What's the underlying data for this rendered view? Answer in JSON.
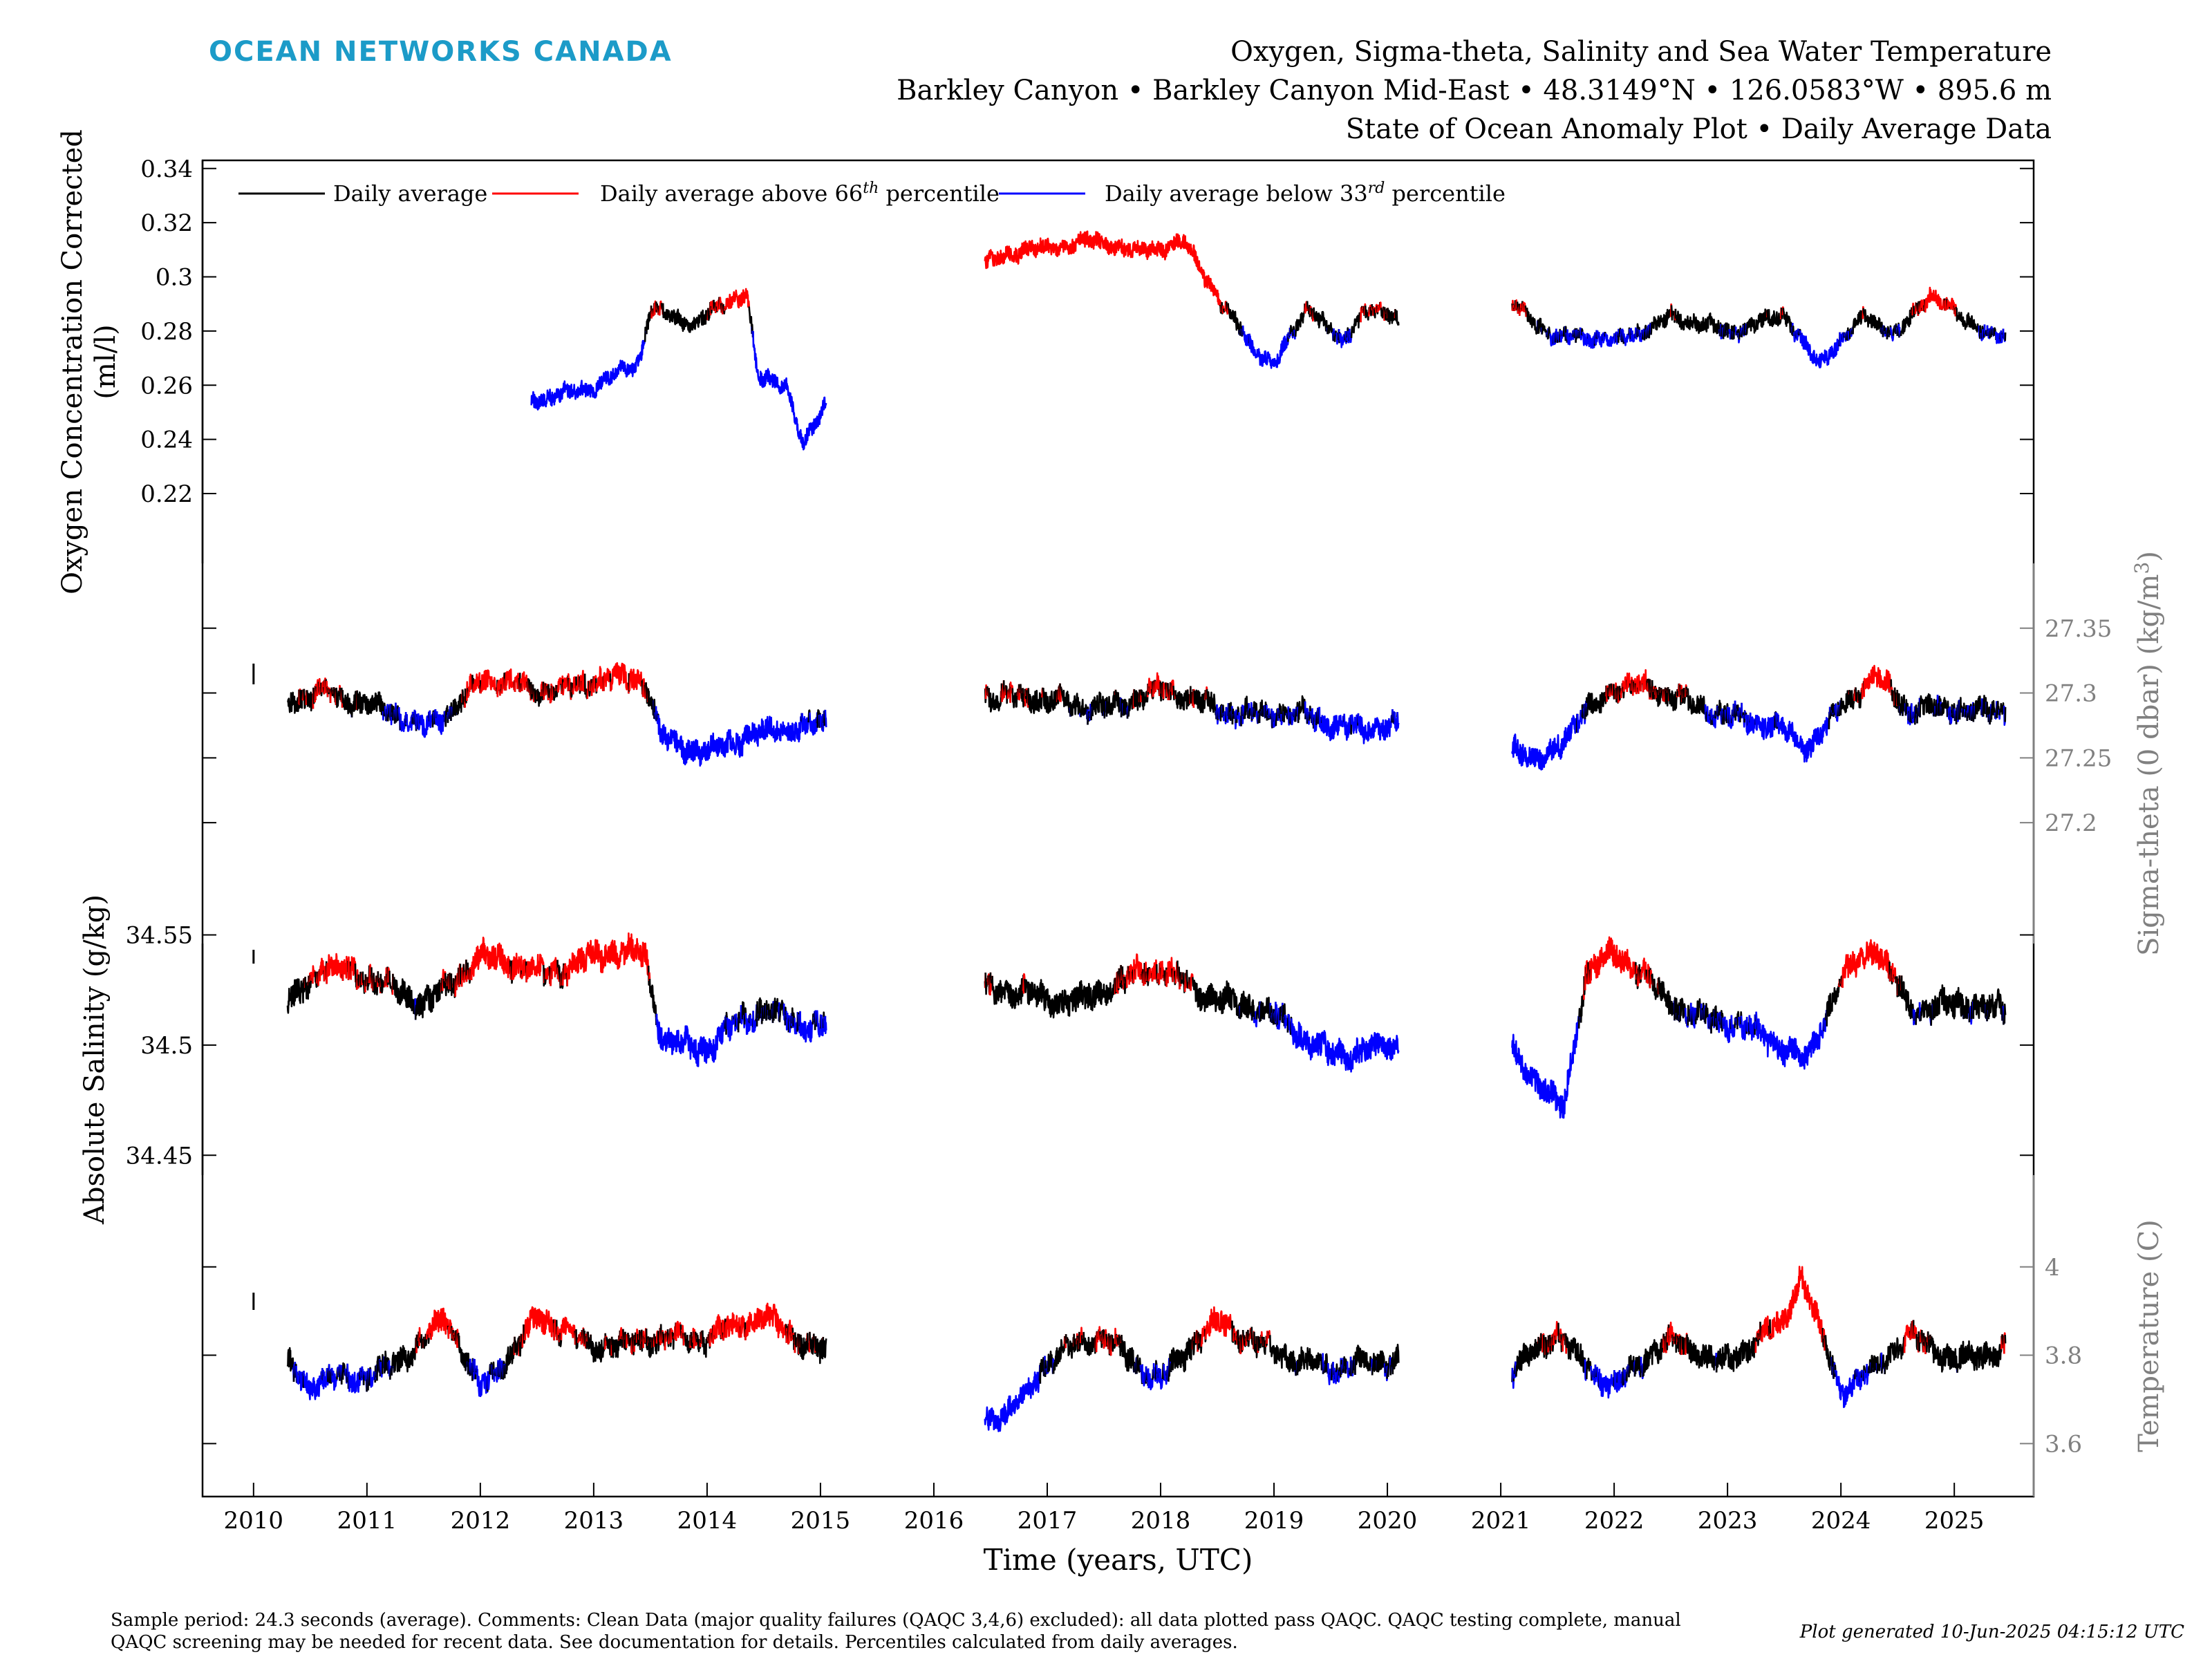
{
  "brand": "OCEAN NETWORKS CANADA",
  "title": {
    "line1": "Oxygen, Sigma-theta, Salinity and Sea Water Temperature",
    "line2": "Barkley Canyon • Barkley Canyon Mid-East • 48.3149°N • 126.0583°W • 895.6 m",
    "line3": "State of Ocean Anomaly Plot • Daily Average Data"
  },
  "footer": {
    "text": "Sample period: 24.3 seconds (average). Comments: Clean Data (major quality failures (QAQC 3,4,6) excluded): all data plotted pass QAQC. QAQC testing complete, manual QAQC screening may be needed for recent data. See documentation for details. Percentiles calculated from daily averages.",
    "generated": "Plot generated 10-Jun-2025 04:15:12 UTC"
  },
  "colors": {
    "normal": "#000000",
    "above": "#ff0000",
    "below": "#0000ff",
    "right_axis": "#808080"
  },
  "chart_data": {
    "type": "line",
    "xlabel": "Time (years, UTC)",
    "x_ticks": [
      "2010",
      "2011",
      "2012",
      "2013",
      "2014",
      "2015",
      "2016",
      "2017",
      "2018",
      "2019",
      "2020",
      "2021",
      "2022",
      "2023",
      "2024",
      "2025"
    ],
    "xlim": [
      2009.55,
      2025.7
    ],
    "grid": false,
    "legend": {
      "placement": "top-left",
      "entries": [
        {
          "label": "Daily average",
          "color": "#000000"
        },
        {
          "label": "Daily average above 66",
          "sup": "th",
          "tail": " percentile",
          "color": "#ff0000"
        },
        {
          "label": "Daily average below 33",
          "sup": "rd",
          "tail": " percentile",
          "color": "#0000ff"
        }
      ]
    },
    "panels": [
      {
        "name": "oxygen",
        "ylabel_line1": "Oxygen Concentration Corrected",
        "ylabel_line2": "(ml/l)",
        "axis_side": "left",
        "ylim": [
          0.207,
          0.343
        ],
        "ticks": [
          0.22,
          0.24,
          0.26,
          0.28,
          0.3,
          0.32,
          0.34
        ],
        "tick_labels": [
          "0.22",
          "0.24",
          "0.26",
          "0.28",
          "0.3",
          "0.32",
          "0.34"
        ],
        "p33": 0.279,
        "p66": 0.288,
        "segments": [
          {
            "start": 2012.45,
            "end": 2015.05,
            "amp": 0.003,
            "x": [
              2012.45,
              2013.0,
              2013.4,
              2013.5,
              2013.9,
              2014.35,
              2014.45,
              2014.7,
              2014.85,
              2015.05
            ],
            "y": [
              0.257,
              0.258,
              0.268,
              0.288,
              0.281,
              0.294,
              0.263,
              0.263,
              0.239,
              0.254
            ]
          },
          {
            "start": 2016.45,
            "end": 2020.1,
            "amp": 0.003,
            "x": [
              2016.45,
              2016.8,
              2017.3,
              2017.8,
              2018.2,
              2018.55,
              2018.8,
              2019.0,
              2019.3,
              2019.6,
              2019.8,
              2020.1
            ],
            "y": [
              0.304,
              0.312,
              0.314,
              0.308,
              0.313,
              0.288,
              0.273,
              0.268,
              0.292,
              0.276,
              0.288,
              0.285
            ]
          },
          {
            "start": 2021.1,
            "end": 2025.45,
            "amp": 0.003,
            "x": [
              2021.1,
              2021.5,
              2022.0,
              2022.5,
              2023.0,
              2023.5,
              2023.8,
              2024.2,
              2024.5,
              2024.8,
              2025.1,
              2025.45
            ],
            "y": [
              0.292,
              0.279,
              0.276,
              0.285,
              0.277,
              0.288,
              0.268,
              0.286,
              0.281,
              0.294,
              0.281,
              0.276
            ]
          }
        ]
      },
      {
        "name": "sigma-theta",
        "ylabel_line1": "Sigma-theta (0 dbar) (kg/m",
        "ylabel_sup": "3",
        "ylabel_tail": ")",
        "axis_side": "right",
        "ylim": [
          27.175,
          27.4
        ],
        "ticks": [
          27.2,
          27.25,
          27.3,
          27.35
        ],
        "tick_labels": [
          "27.2",
          "27.25",
          "27.3",
          "27.35"
        ],
        "p33": 27.283,
        "p66": 27.302,
        "segments": [
          {
            "start": 2010.3,
            "end": 2015.05,
            "amp": 0.009,
            "x": [
              2010.3,
              2010.6,
              2011.0,
              2011.5,
              2012.0,
              2012.5,
              2013.0,
              2013.45,
              2013.6,
              2014.0,
              2014.5,
              2015.05
            ],
            "y": [
              27.29,
              27.305,
              27.292,
              27.278,
              27.308,
              27.296,
              27.308,
              27.307,
              27.268,
              27.262,
              27.268,
              27.278
            ]
          },
          {
            "start": 2016.45,
            "end": 2020.1,
            "amp": 0.009,
            "x": [
              2016.45,
              2017.0,
              2017.5,
              2018.0,
              2018.5,
              2019.0,
              2019.5,
              2020.1
            ],
            "y": [
              27.298,
              27.292,
              27.296,
              27.302,
              27.288,
              27.278,
              27.276,
              27.278
            ]
          },
          {
            "start": 2021.1,
            "end": 2025.45,
            "amp": 0.009,
            "x": [
              2021.1,
              2021.35,
              2021.7,
              2022.0,
              2022.5,
              2023.0,
              2023.5,
              2023.7,
              2024.0,
              2024.3,
              2024.6,
              2025.0,
              2025.45
            ],
            "y": [
              27.262,
              27.245,
              27.288,
              27.308,
              27.293,
              27.282,
              27.268,
              27.258,
              27.296,
              27.318,
              27.285,
              27.29,
              27.282
            ]
          }
        ]
      },
      {
        "name": "salinity",
        "ylabel_line1": "Absolute Salinity (g/kg)",
        "axis_side": "left",
        "ylim": [
          34.441,
          34.59
        ],
        "ticks": [
          34.45,
          34.5,
          34.55
        ],
        "tick_labels": [
          "34.45",
          "34.5",
          "34.55"
        ],
        "p33": 34.512,
        "p66": 34.53,
        "segments": [
          {
            "start": 2010.3,
            "end": 2015.05,
            "amp": 0.006,
            "x": [
              2010.3,
              2010.6,
              2011.0,
              2011.5,
              2012.0,
              2012.5,
              2013.0,
              2013.45,
              2013.6,
              2014.0,
              2014.5,
              2015.05
            ],
            "y": [
              34.522,
              34.54,
              34.528,
              34.518,
              34.536,
              34.535,
              34.543,
              34.542,
              34.505,
              34.497,
              34.512,
              34.51
            ]
          },
          {
            "start": 2016.45,
            "end": 2020.1,
            "amp": 0.006,
            "x": [
              2016.45,
              2017.0,
              2017.5,
              2018.0,
              2018.5,
              2019.0,
              2019.5,
              2020.1
            ],
            "y": [
              34.525,
              34.522,
              34.528,
              34.532,
              34.52,
              34.51,
              34.5,
              34.5
            ]
          },
          {
            "start": 2021.1,
            "end": 2025.45,
            "amp": 0.006,
            "x": [
              2021.1,
              2021.4,
              2021.55,
              2021.75,
              2022.0,
              2022.5,
              2023.0,
              2023.5,
              2023.7,
              2024.0,
              2024.3,
              2024.6,
              2025.0,
              2025.45
            ],
            "y": [
              34.495,
              34.478,
              34.47,
              34.53,
              34.538,
              34.522,
              34.512,
              34.5,
              34.495,
              34.528,
              34.54,
              34.515,
              34.52,
              34.515
            ]
          }
        ]
      },
      {
        "name": "temperature",
        "ylabel_line1": "Temperature (C)",
        "axis_side": "right",
        "ylim": [
          3.48,
          4.2
        ],
        "ticks": [
          3.6,
          3.8,
          4.0
        ],
        "tick_labels": [
          "3.6",
          "3.8",
          "4"
        ],
        "p33": 3.762,
        "p66": 3.84,
        "segments": [
          {
            "start": 2010.3,
            "end": 2015.05,
            "amp": 0.028,
            "x": [
              2010.3,
              2010.5,
              2011.0,
              2011.5,
              2011.7,
              2012.0,
              2012.5,
              2013.0,
              2013.5,
              2014.0,
              2014.5,
              2015.05
            ],
            "y": [
              3.78,
              3.73,
              3.76,
              3.85,
              3.88,
              3.71,
              3.88,
              3.8,
              3.86,
              3.84,
              3.9,
              3.78
            ]
          },
          {
            "start": 2016.45,
            "end": 2020.1,
            "amp": 0.028,
            "x": [
              2016.45,
              2016.7,
              2017.0,
              2017.5,
              2018.0,
              2018.5,
              2019.0,
              2019.5,
              2020.1
            ],
            "y": [
              3.66,
              3.7,
              3.8,
              3.83,
              3.74,
              3.86,
              3.83,
              3.77,
              3.8
            ]
          },
          {
            "start": 2021.1,
            "end": 2025.45,
            "amp": 0.028,
            "x": [
              2021.1,
              2021.5,
              2022.0,
              2022.5,
              2023.0,
              2023.5,
              2023.65,
              2024.0,
              2024.3,
              2024.6,
              2025.0,
              2025.45
            ],
            "y": [
              3.76,
              3.86,
              3.74,
              3.82,
              3.78,
              3.86,
              3.98,
              3.74,
              3.78,
              3.84,
              3.8,
              3.8
            ]
          }
        ]
      }
    ]
  }
}
